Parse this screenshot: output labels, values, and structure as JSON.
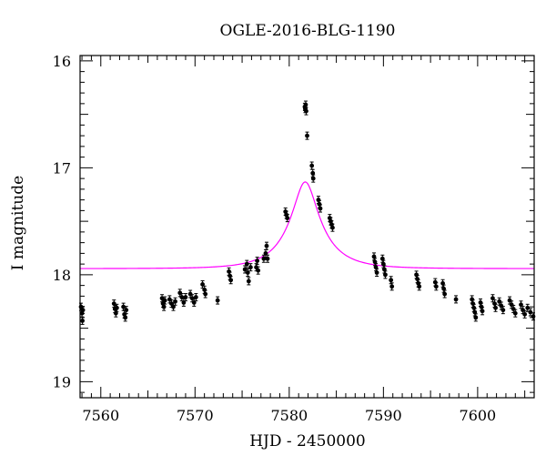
{
  "chart_data": {
    "type": "scatter",
    "title": "OGLE-2016-BLG-1190",
    "xlabel": "HJD - 2450000",
    "ylabel": "I magnitude",
    "xlim": [
      7557.8,
      7606.0
    ],
    "ylim": [
      19.15,
      15.95
    ],
    "y_inverted": true,
    "x_ticks": [
      7560,
      7570,
      7580,
      7590,
      7600
    ],
    "x_tick_labels": [
      "7560",
      "7570",
      "7580",
      "7590",
      "7600"
    ],
    "y_ticks": [
      16,
      17,
      18,
      19
    ],
    "y_tick_labels": [
      "16",
      "17",
      "18",
      "19"
    ],
    "grid": false,
    "series": [
      {
        "kind": "points",
        "color": "#000000",
        "points": [
          [
            7557.9,
            18.3
          ],
          [
            7558.0,
            18.36
          ],
          [
            7558.05,
            18.43
          ],
          [
            7558.1,
            18.33
          ],
          [
            7561.4,
            18.27
          ],
          [
            7561.5,
            18.32
          ],
          [
            7561.6,
            18.36
          ],
          [
            7561.7,
            18.31
          ],
          [
            7562.4,
            18.3
          ],
          [
            7562.5,
            18.37
          ],
          [
            7562.6,
            18.4
          ],
          [
            7562.7,
            18.33
          ],
          [
            7566.5,
            18.22
          ],
          [
            7566.6,
            18.27
          ],
          [
            7566.7,
            18.3
          ],
          [
            7566.8,
            18.24
          ],
          [
            7567.3,
            18.23
          ],
          [
            7567.5,
            18.27
          ],
          [
            7567.7,
            18.3
          ],
          [
            7567.9,
            18.25
          ],
          [
            7568.4,
            18.17
          ],
          [
            7568.6,
            18.21
          ],
          [
            7568.8,
            18.26
          ],
          [
            7569.0,
            18.21
          ],
          [
            7569.5,
            18.18
          ],
          [
            7569.7,
            18.22
          ],
          [
            7569.9,
            18.26
          ],
          [
            7570.1,
            18.21
          ],
          [
            7570.8,
            18.09
          ],
          [
            7571.0,
            18.14
          ],
          [
            7571.1,
            18.18
          ],
          [
            7572.4,
            18.24
          ],
          [
            7573.6,
            17.97
          ],
          [
            7573.7,
            18.01
          ],
          [
            7573.8,
            18.05
          ],
          [
            7575.3,
            17.95
          ],
          [
            7575.5,
            17.9
          ],
          [
            7575.6,
            17.98
          ],
          [
            7575.7,
            18.06
          ],
          [
            7575.9,
            17.93
          ],
          [
            7576.5,
            17.93
          ],
          [
            7576.6,
            17.87
          ],
          [
            7576.7,
            17.96
          ],
          [
            7577.3,
            17.85
          ],
          [
            7577.5,
            17.8
          ],
          [
            7577.6,
            17.73
          ],
          [
            7577.7,
            17.85
          ],
          [
            7579.6,
            17.41
          ],
          [
            7579.7,
            17.44
          ],
          [
            7579.8,
            17.47
          ],
          [
            7581.65,
            16.43
          ],
          [
            7581.7,
            16.45
          ],
          [
            7581.75,
            16.41
          ],
          [
            7581.8,
            16.47
          ],
          [
            7581.9,
            16.7
          ],
          [
            7582.4,
            16.98
          ],
          [
            7582.5,
            17.05
          ],
          [
            7582.55,
            17.1
          ],
          [
            7583.1,
            17.3
          ],
          [
            7583.2,
            17.34
          ],
          [
            7583.3,
            17.38
          ],
          [
            7584.3,
            17.47
          ],
          [
            7584.4,
            17.5
          ],
          [
            7584.5,
            17.53
          ],
          [
            7584.6,
            17.56
          ],
          [
            7589.0,
            17.83
          ],
          [
            7589.1,
            17.88
          ],
          [
            7589.2,
            17.93
          ],
          [
            7589.3,
            17.98
          ],
          [
            7589.9,
            17.85
          ],
          [
            7590.0,
            17.9
          ],
          [
            7590.1,
            17.95
          ],
          [
            7590.2,
            18.0
          ],
          [
            7590.8,
            18.05
          ],
          [
            7590.9,
            18.11
          ],
          [
            7593.5,
            18.0
          ],
          [
            7593.6,
            18.04
          ],
          [
            7593.7,
            18.08
          ],
          [
            7593.8,
            18.11
          ],
          [
            7595.5,
            18.07
          ],
          [
            7595.6,
            18.11
          ],
          [
            7596.3,
            18.08
          ],
          [
            7596.4,
            18.13
          ],
          [
            7596.5,
            18.18
          ],
          [
            7597.7,
            18.23
          ],
          [
            7599.4,
            18.23
          ],
          [
            7599.5,
            18.27
          ],
          [
            7599.6,
            18.31
          ],
          [
            7599.7,
            18.35
          ],
          [
            7599.8,
            18.4
          ],
          [
            7600.3,
            18.26
          ],
          [
            7600.4,
            18.3
          ],
          [
            7600.5,
            18.34
          ],
          [
            7601.6,
            18.22
          ],
          [
            7601.8,
            18.27
          ],
          [
            7601.9,
            18.31
          ],
          [
            7602.3,
            18.25
          ],
          [
            7602.5,
            18.29
          ],
          [
            7602.7,
            18.33
          ],
          [
            7603.4,
            18.24
          ],
          [
            7603.6,
            18.28
          ],
          [
            7603.8,
            18.32
          ],
          [
            7604.0,
            18.36
          ],
          [
            7604.6,
            18.28
          ],
          [
            7604.8,
            18.33
          ],
          [
            7605.0,
            18.37
          ],
          [
            7605.3,
            18.31
          ],
          [
            7605.6,
            18.35
          ],
          [
            7605.9,
            18.39
          ]
        ]
      },
      {
        "kind": "model-curve",
        "color": "#ff00ff",
        "model": {
          "type": "point-lens",
          "t0": 7581.7,
          "tE": 4.0,
          "u0": 0.3,
          "I_source": 18.8,
          "I_blend": 18.6
        }
      }
    ]
  }
}
